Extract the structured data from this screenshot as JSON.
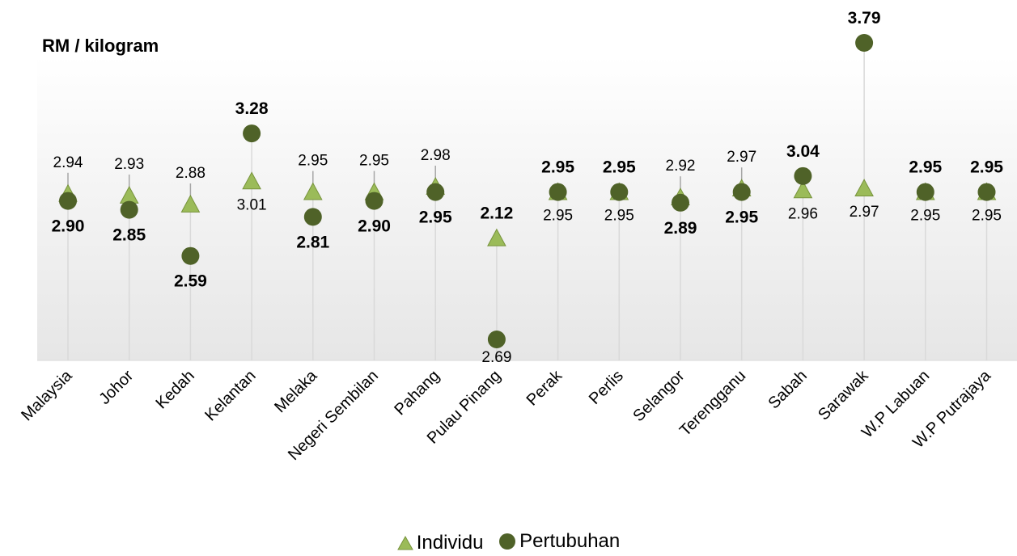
{
  "chart_data": {
    "type": "scatter",
    "ylabel": "RM / kilogram",
    "categories": [
      "Malaysia",
      "Johor",
      "Kedah",
      "Kelantan",
      "Melaka",
      "Negeri Sembilan",
      "Pahang",
      "Pulau Pinang",
      "Perak",
      "Perlis",
      "Selangor",
      "Terengganu",
      "Sabah",
      "Sarawak",
      "W.P Labuan",
      "W.P Putrajaya"
    ],
    "series": [
      {
        "name": "Individu",
        "marker": "triangle",
        "color": "#9bbb59",
        "values": [
          2.94,
          2.93,
          2.88,
          3.01,
          2.95,
          2.95,
          2.98,
          2.69,
          2.95,
          2.95,
          2.92,
          2.97,
          2.96,
          2.97,
          2.95,
          2.95
        ]
      },
      {
        "name": "Pertubuhan",
        "marker": "circle",
        "color": "#4f6228",
        "values": [
          2.9,
          2.85,
          2.59,
          3.28,
          2.81,
          2.9,
          2.95,
          2.12,
          2.95,
          2.95,
          2.89,
          2.95,
          3.04,
          3.79,
          2.95,
          2.95
        ]
      }
    ],
    "grid": "vertical drop lines",
    "legend_position": "bottom-center"
  }
}
